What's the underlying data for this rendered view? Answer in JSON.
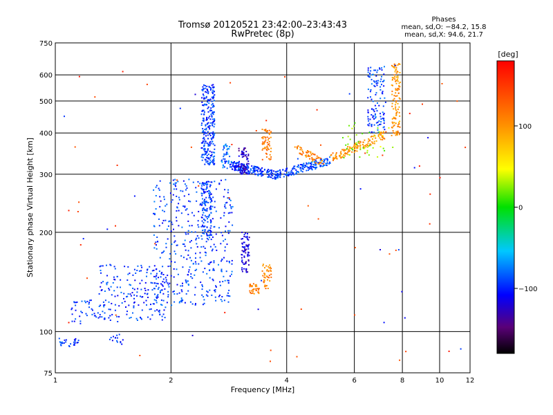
{
  "chart_data": {
    "type": "scatter",
    "title": "Tromsø 20120521 23:42:00–23:43:43",
    "subtitle": "RwPretec (8p)",
    "xlabel": "Frequency [MHz]",
    "ylabel": "Stationary phase Virtual Height [km]",
    "x_scale": "log",
    "y_scale": "log",
    "xlim": [
      1,
      12
    ],
    "ylim": [
      75,
      750
    ],
    "x_ticks": [
      "1",
      "2",
      "4",
      "6",
      "8",
      "10",
      "12"
    ],
    "x_tick_values": [
      1,
      2,
      4,
      6,
      8,
      10,
      12
    ],
    "y_ticks": [
      "75",
      "100",
      "200",
      "300",
      "400",
      "500",
      "600",
      "750"
    ],
    "y_tick_values": [
      75,
      100,
      200,
      300,
      400,
      500,
      600,
      750
    ],
    "grid": true,
    "phase_stats": {
      "title": "Phases",
      "line1": "mean, sd,O: −84.2, 15.8",
      "line2": "mean, sd,X:  94.6, 21.7"
    },
    "colorbar": {
      "label": "[deg]",
      "range": [
        -180,
        180
      ],
      "ticks": [
        "100",
        "0",
        "−100"
      ],
      "tick_values": [
        100,
        0,
        -100
      ]
    },
    "traces": [
      {
        "name": "",
        "kind": "cloud",
        "f": [
          1.0,
          1.15
        ],
        "h": [
          90,
          96
        ],
        "phase": -95,
        "n": 30
      },
      {
        "name": "",
        "kind": "cloud",
        "f": [
          1.35,
          1.5
        ],
        "h": [
          91,
          98
        ],
        "phase": -95,
        "n": 15
      },
      {
        "name": "",
        "kind": "cloud",
        "f": [
          1.1,
          1.35
        ],
        "h": [
          105,
          125
        ],
        "phase": -95,
        "n": 40
      },
      {
        "name": "",
        "kind": "cloud",
        "f": [
          1.3,
          2.0
        ],
        "h": [
          108,
          160
        ],
        "phase": -95,
        "n": 190
      },
      {
        "name": "",
        "kind": "cloud",
        "f": [
          1.8,
          2.9
        ],
        "h": [
          120,
          290
        ],
        "phase": -92,
        "n": 420
      },
      {
        "name": "",
        "kind": "band",
        "f": [
          2.4,
          2.55
        ],
        "h": [
          190,
          285
        ],
        "phase": -92,
        "n": 120
      },
      {
        "name": "",
        "kind": "band",
        "f": [
          2.4,
          2.6
        ],
        "h": [
          320,
          560
        ],
        "phase": -94,
        "n": 260
      },
      {
        "name": "",
        "kind": "band",
        "f": [
          2.7,
          2.85
        ],
        "h": [
          310,
          370
        ],
        "phase": -80,
        "n": 40
      },
      {
        "name": "",
        "kind": "curve",
        "f": [
          2.85,
          3.75
        ],
        "h": [
          320,
          298
        ],
        "phase": -95,
        "n": 180
      },
      {
        "name": "",
        "kind": "curve",
        "f": [
          3.75,
          5.2
        ],
        "h": [
          298,
          330
        ],
        "phase": -88,
        "n": 170
      },
      {
        "name": "",
        "kind": "band",
        "f": [
          3.05,
          3.2
        ],
        "h": [
          150,
          200
        ],
        "phase": -120,
        "n": 70
      },
      {
        "name": "",
        "kind": "band",
        "f": [
          3.2,
          3.4
        ],
        "h": [
          130,
          140
        ],
        "phase": 110,
        "n": 35
      },
      {
        "name": "",
        "kind": "band",
        "f": [
          3.45,
          3.65
        ],
        "h": [
          135,
          160
        ],
        "phase": 110,
        "n": 40
      },
      {
        "name": "",
        "kind": "band",
        "f": [
          3.45,
          3.65
        ],
        "h": [
          330,
          410
        ],
        "phase": 115,
        "n": 60
      },
      {
        "name": "",
        "kind": "band",
        "f": [
          3.0,
          3.2
        ],
        "h": [
          300,
          360
        ],
        "phase": -125,
        "n": 60
      },
      {
        "name": "",
        "kind": "curve",
        "f": [
          4.2,
          5.0
        ],
        "h": [
          360,
          325
        ],
        "phase": 110,
        "n": 60
      },
      {
        "name": "",
        "kind": "curve",
        "f": [
          5.2,
          7.2
        ],
        "h": [
          335,
          395
        ],
        "phase": 100,
        "n": 140
      },
      {
        "name": "",
        "kind": "band",
        "f": [
          6.5,
          7.2
        ],
        "h": [
          400,
          640
        ],
        "phase": -92,
        "n": 120
      },
      {
        "name": "",
        "kind": "band",
        "f": [
          7.5,
          7.9
        ],
        "h": [
          390,
          650
        ],
        "phase": 100,
        "n": 120
      },
      {
        "name": "",
        "kind": "cloud",
        "f": [
          5.6,
          7.8
        ],
        "h": [
          330,
          430
        ],
        "phase": 30,
        "n": 40
      },
      {
        "name": "",
        "kind": "cloud",
        "f": [
          1.0,
          12.0
        ],
        "h": [
          80,
          700
        ],
        "phase": 150,
        "n": 55
      },
      {
        "name": "",
        "kind": "cloud",
        "f": [
          1.0,
          12.0
        ],
        "h": [
          80,
          700
        ],
        "phase": -100,
        "n": 35
      }
    ]
  }
}
